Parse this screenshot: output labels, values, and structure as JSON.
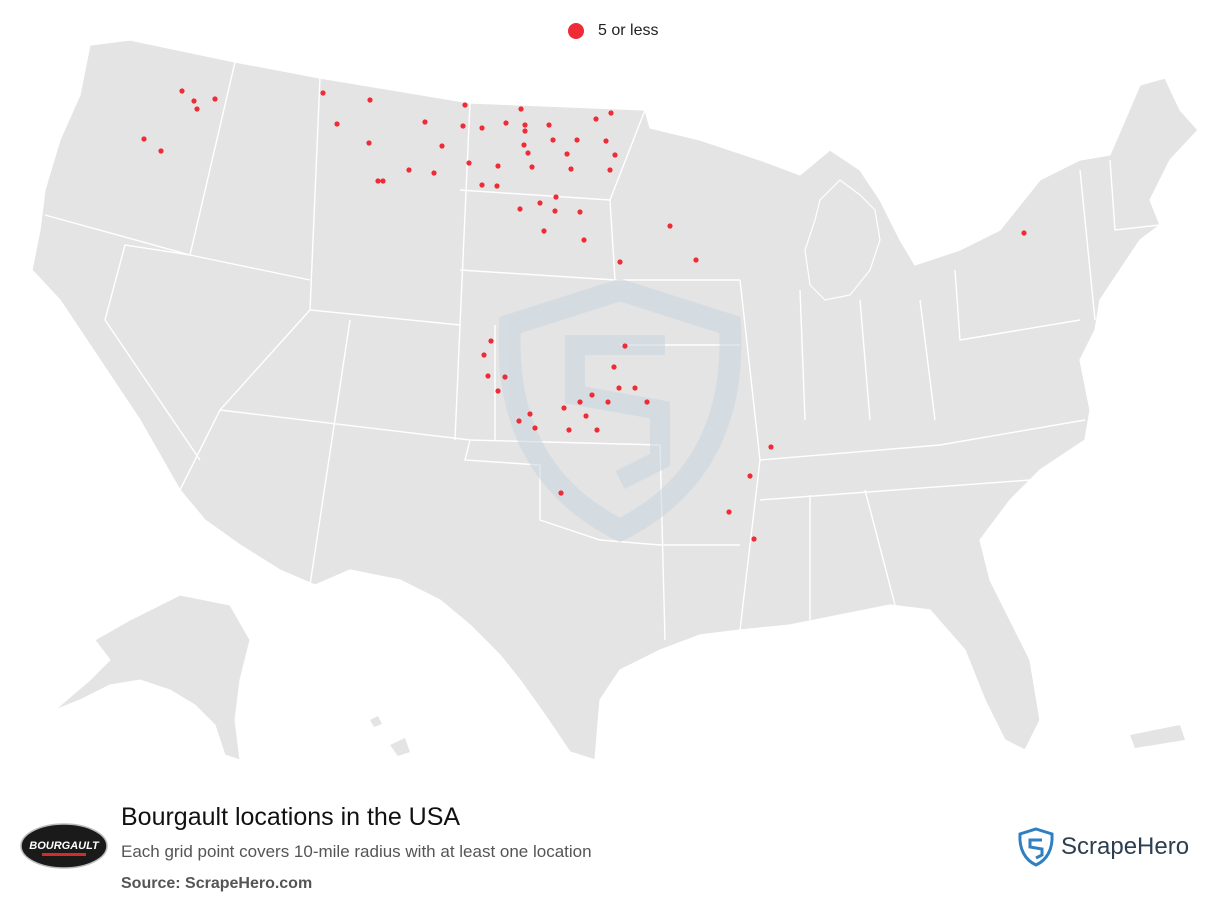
{
  "legend": {
    "label": "5 or less",
    "color": "#ef2b36"
  },
  "map": {
    "land_color": "#e4e4e4",
    "border_color": "#ffffff",
    "point_color": "#ef2b36",
    "watermark_color": "#c9d6e0"
  },
  "footer": {
    "logo_text": "BOURGAULT",
    "title": "Bourgault locations in the USA",
    "subtitle": "Each grid point covers 10-mile radius with at least one location",
    "source": "Source: ScrapeHero.com"
  },
  "brand": {
    "name": "ScrapeHero",
    "color": "#2f7fc1"
  }
}
